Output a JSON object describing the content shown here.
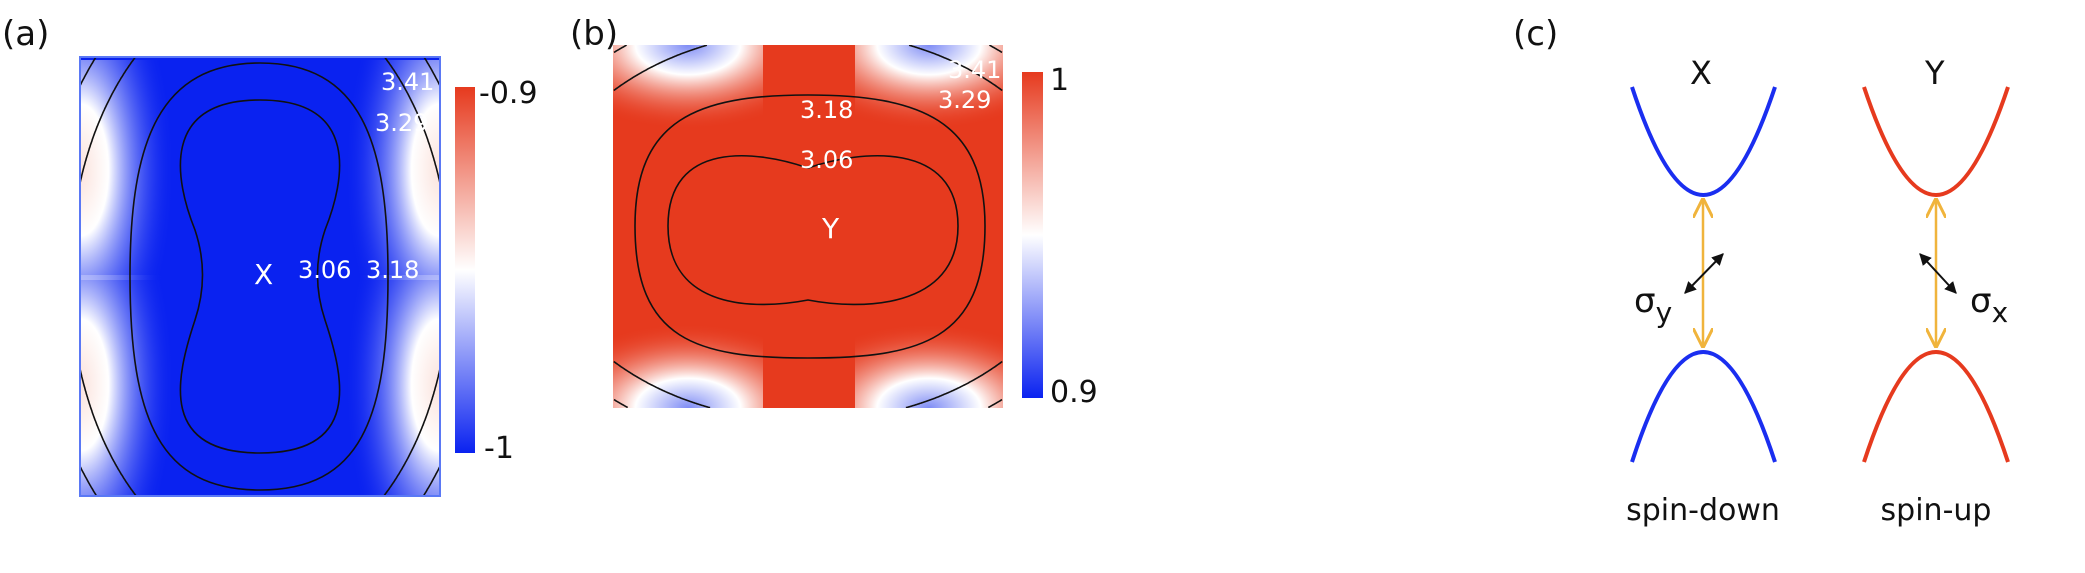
{
  "panel_a": {
    "label": "(a)",
    "center_label": "X",
    "contour_labels": [
      "3.41",
      "3.29",
      "3.06",
      "3.18"
    ],
    "colorbar": {
      "max": "-0.9",
      "min": "-1",
      "max_color": "#e63a1e",
      "min_color": "#0a22f0"
    }
  },
  "panel_b": {
    "label": "(b)",
    "center_label": "Y",
    "contour_labels": [
      "3.41",
      "3.29",
      "3.18",
      "3.06"
    ],
    "colorbar": {
      "max": "1",
      "min": "0.9",
      "max_color": "#e63a1e",
      "min_color": "#0a22f0"
    }
  },
  "panel_c": {
    "label": "(c)",
    "left": {
      "valley": "X",
      "polarization": "σ",
      "subscript": "y",
      "spin": "spin-down",
      "color": "#1a2ef0"
    },
    "right": {
      "valley": "Y",
      "polarization": "σ",
      "subscript": "x",
      "spin": "spin-up",
      "color": "#e63a1e"
    },
    "transition_color": "#f0b43c"
  }
}
